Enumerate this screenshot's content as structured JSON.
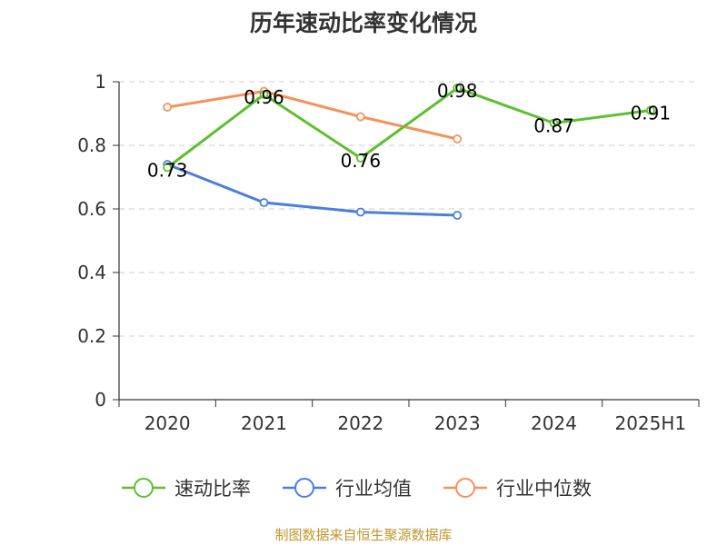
{
  "chart_data": {
    "type": "line",
    "title": "历年速动比率变化情况",
    "categories": [
      "2020",
      "2021",
      "2022",
      "2023",
      "2024",
      "2025H1"
    ],
    "ylim": [
      0,
      1
    ],
    "yticks": [
      "0",
      "0.2",
      "0.4",
      "0.6",
      "0.8",
      "1"
    ],
    "ytick_values": [
      0,
      0.2,
      0.4,
      0.6,
      0.8,
      1
    ],
    "grid": true,
    "legend_position": "bottom",
    "series": [
      {
        "name": "速动比率",
        "color": "#5cc02e",
        "values": [
          0.73,
          0.96,
          0.76,
          0.98,
          0.87,
          0.91
        ],
        "labels": [
          "0.73",
          "0.96",
          "0.76",
          "0.98",
          "0.87",
          "0.91"
        ],
        "show_labels": true
      },
      {
        "name": "行业均值",
        "color": "#4a7fdc",
        "values": [
          0.74,
          0.62,
          0.59,
          0.58,
          null,
          null
        ],
        "show_labels": false
      },
      {
        "name": "行业中位数",
        "color": "#f5915a",
        "values": [
          0.92,
          0.97,
          0.89,
          0.82,
          null,
          null
        ],
        "show_labels": false
      }
    ]
  },
  "source_text": "制图数据来自恒生聚源数据库",
  "source_color": "#c0972e"
}
